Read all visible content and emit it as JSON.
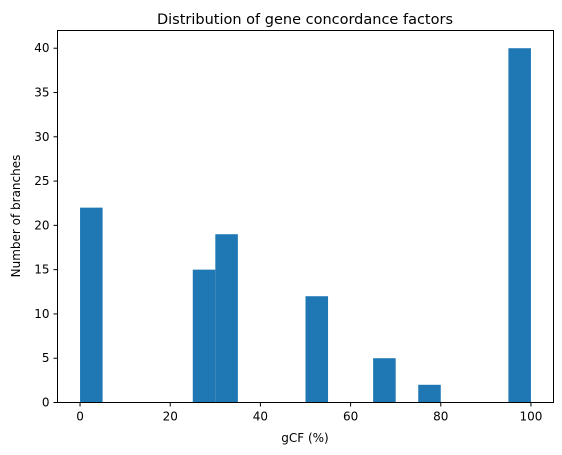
{
  "chart_data": {
    "type": "bar",
    "title": "Distribution of gene concordance factors",
    "xlabel": "gCF (%)",
    "ylabel": "Number of branches",
    "bar_color": "#1f77b4",
    "xlim": [
      -5,
      105
    ],
    "ylim": [
      0,
      42
    ],
    "xticks": [
      0,
      20,
      40,
      60,
      80,
      100
    ],
    "yticks": [
      0,
      5,
      10,
      15,
      20,
      25,
      30,
      35,
      40
    ],
    "grid": false,
    "legend": "none",
    "bins": [
      {
        "x0": 0,
        "x1": 5,
        "count": 22
      },
      {
        "x0": 25,
        "x1": 30,
        "count": 15
      },
      {
        "x0": 30,
        "x1": 35,
        "count": 19
      },
      {
        "x0": 50,
        "x1": 55,
        "count": 12
      },
      {
        "x0": 65,
        "x1": 70,
        "count": 5
      },
      {
        "x0": 75,
        "x1": 80,
        "count": 2
      },
      {
        "x0": 95,
        "x1": 100,
        "count": 40
      }
    ]
  }
}
